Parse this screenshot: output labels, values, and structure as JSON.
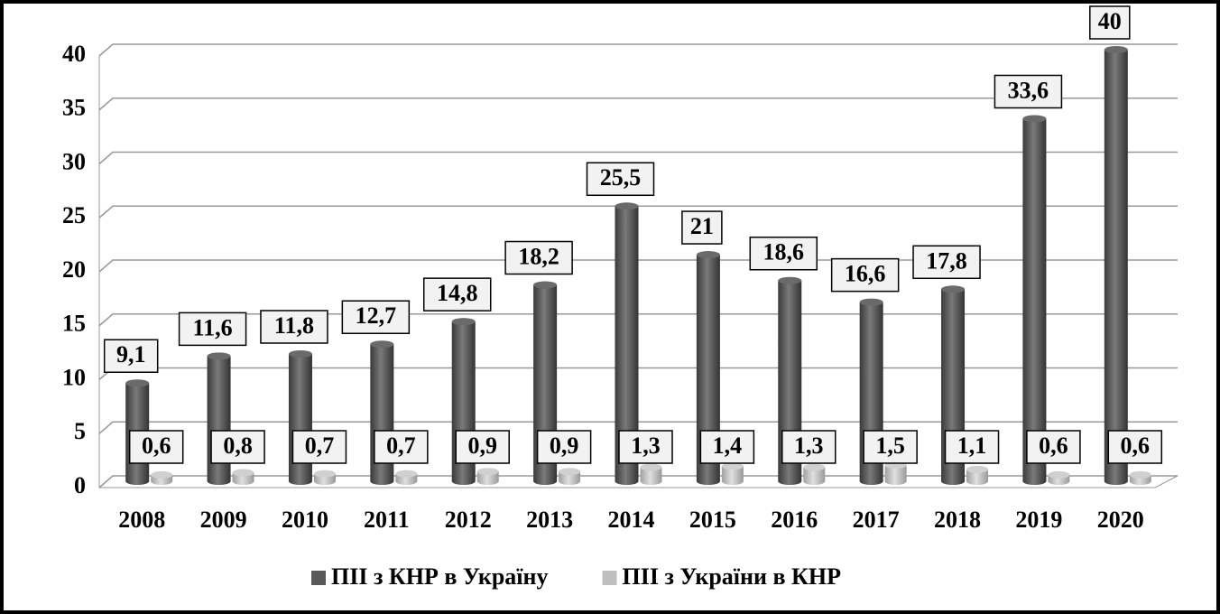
{
  "chart_data": {
    "type": "bar",
    "categories": [
      "2008",
      "2009",
      "2010",
      "2011",
      "2012",
      "2013",
      "2014",
      "2015",
      "2016",
      "2017",
      "2018",
      "2019",
      "2020"
    ],
    "series": [
      {
        "name": "ПІІ з КНР в Україну",
        "color": "#595959",
        "values": [
          9.1,
          11.6,
          11.8,
          12.7,
          14.8,
          18.2,
          25.5,
          21,
          18.6,
          16.6,
          17.8,
          33.6,
          40
        ],
        "value_labels": [
          "9,1",
          "11,6",
          "11,8",
          "12,7",
          "14,8",
          "18,2",
          "25,5",
          "21",
          "18,6",
          "16,6",
          "17,8",
          "33,6",
          "40"
        ]
      },
      {
        "name": "ПІІ з України в КНР",
        "color": "#bfbfbf",
        "values": [
          0.6,
          0.8,
          0.7,
          0.7,
          0.9,
          0.9,
          1.3,
          1.4,
          1.3,
          1.5,
          1.1,
          0.6,
          0.6
        ],
        "value_labels": [
          "0,6",
          "0,8",
          "0,7",
          "0,7",
          "0,9",
          "0,9",
          "1,3",
          "1,4",
          "1,3",
          "1,5",
          "1,1",
          "0,6",
          "0,6"
        ]
      }
    ],
    "ylim": [
      0,
      40
    ],
    "yticks": [
      0,
      5,
      10,
      15,
      20,
      25,
      30,
      35,
      40
    ],
    "grid": true,
    "legend": "bottom"
  }
}
